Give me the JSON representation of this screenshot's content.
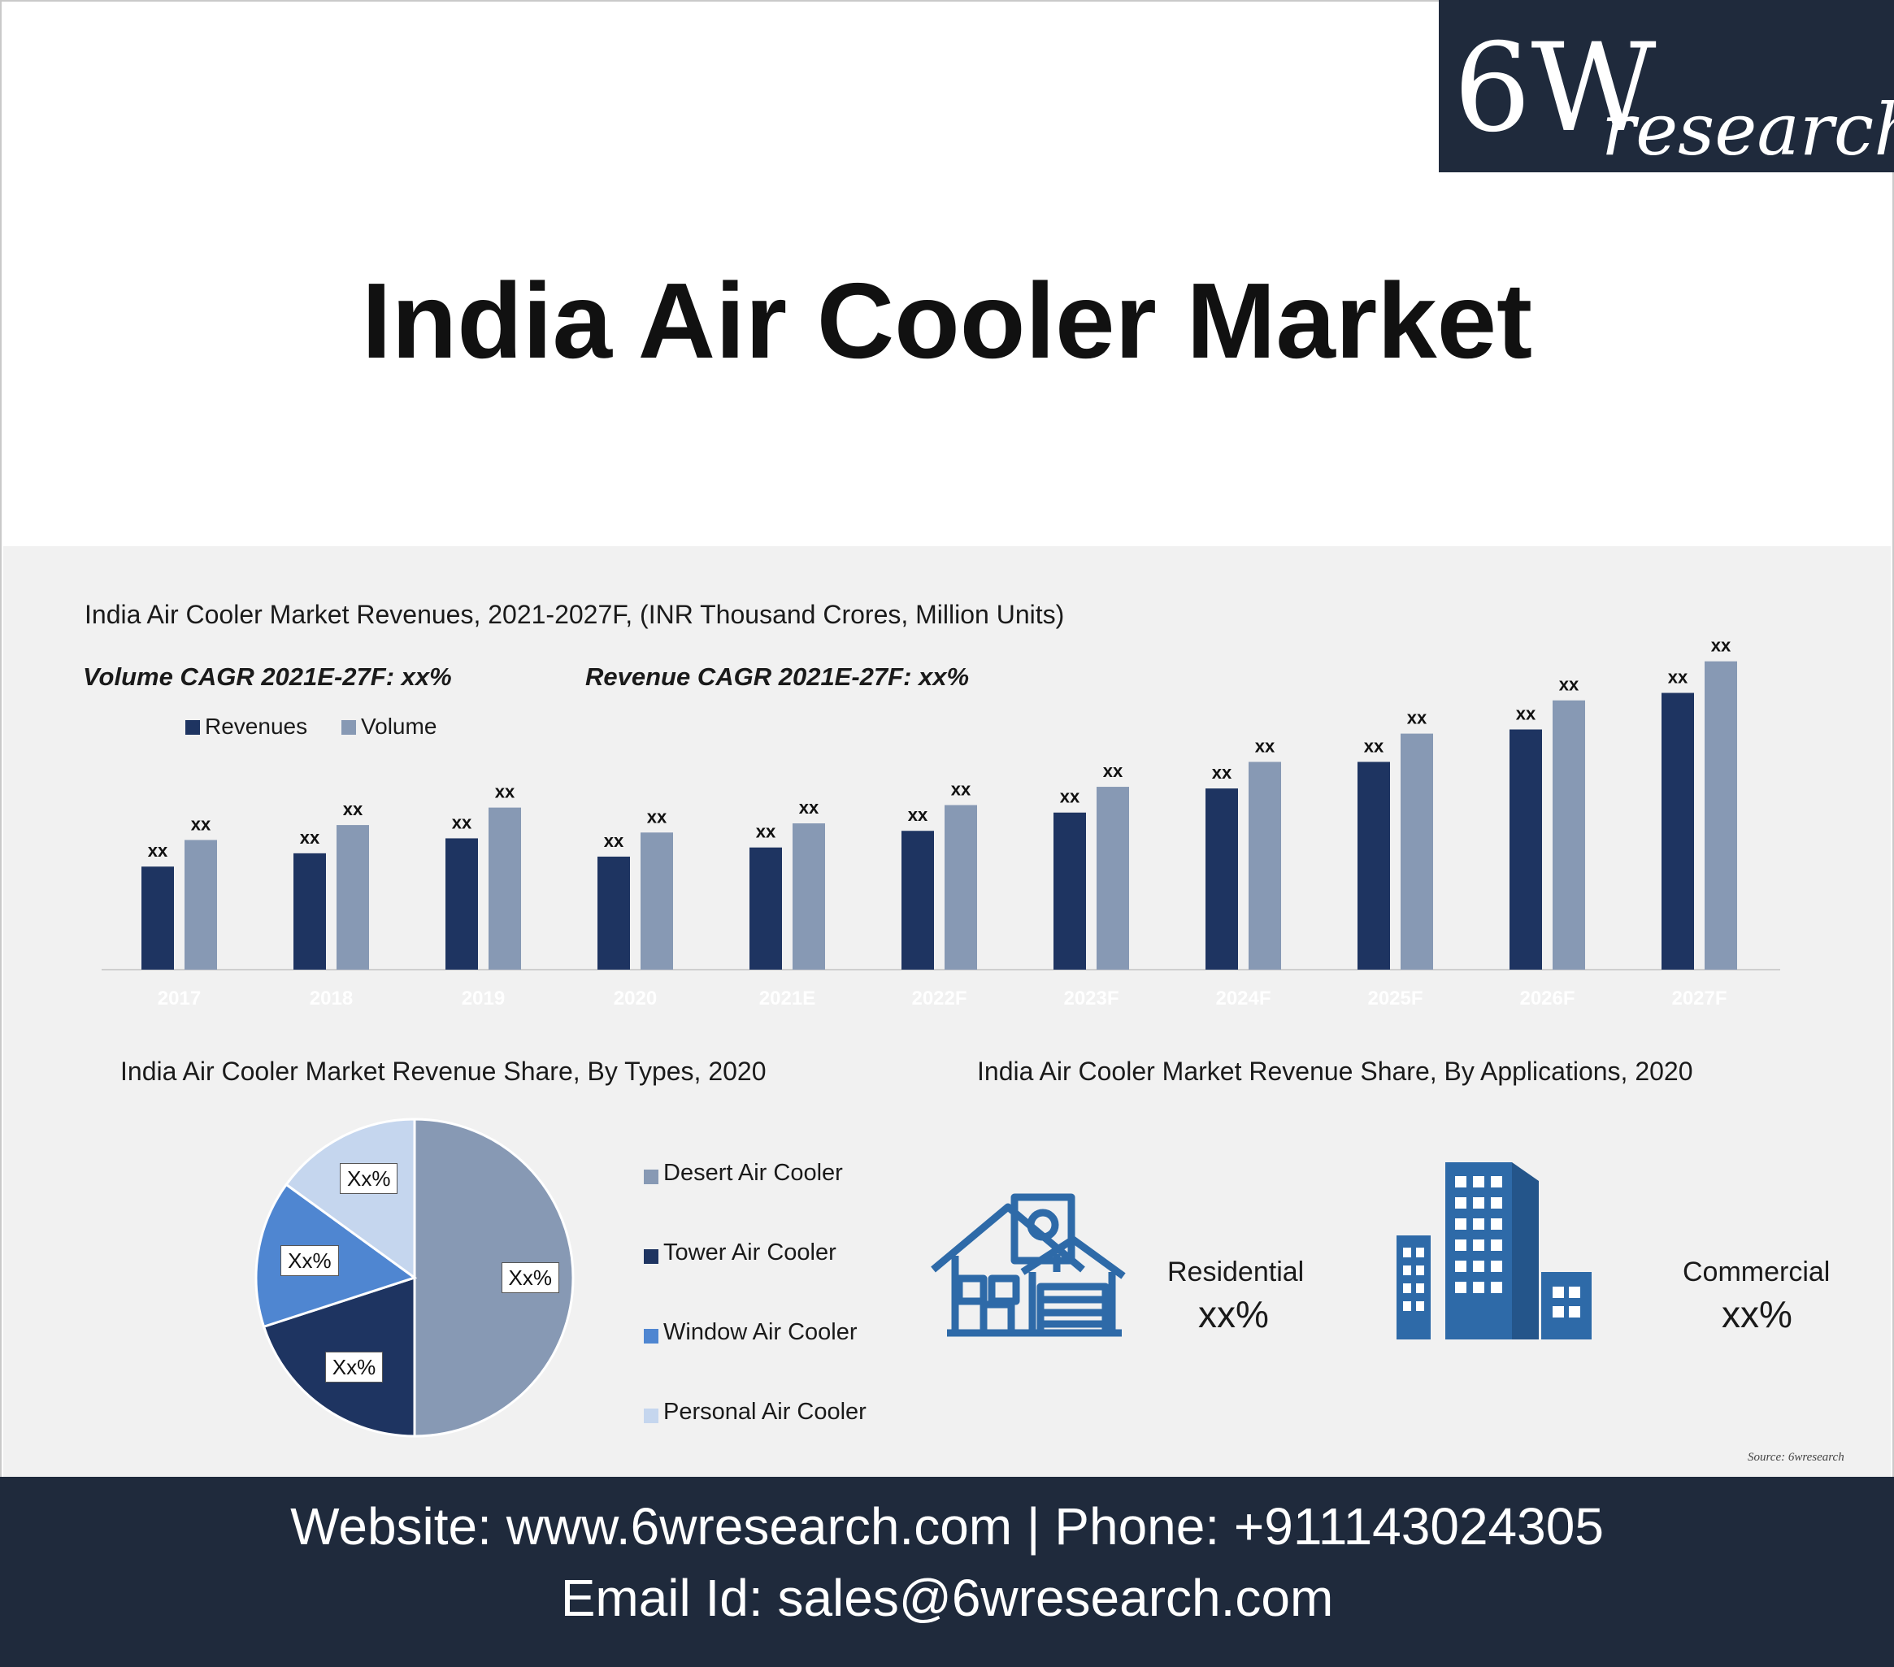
{
  "brand": {
    "logo_number": "6W",
    "logo_word": "research",
    "bg_color": "#1f2a3c"
  },
  "title": "India Air Cooler Market",
  "bar_chart": {
    "title": "India Air Cooler Market Revenues, 2021-2027F, (INR Thousand Crores, Million Units)",
    "volume_cagr": "Volume CAGR 2021E-27F: xx%",
    "revenue_cagr": "Revenue CAGR 2021E-27F: xx%"
  },
  "pie_chart": {
    "title": "India Air Cooler Market Revenue Share, By Types, 2020"
  },
  "applications": {
    "title": "India Air Cooler Market Revenue Share, By Applications, 2020",
    "items": [
      {
        "label": "Residential",
        "value": "xx%",
        "icon": "house-icon"
      },
      {
        "label": "Commercial",
        "value": "xx%",
        "icon": "building-icon"
      }
    ]
  },
  "source": "Source: 6wresearch",
  "footer": {
    "line1": "Website: www.6wresearch.com | Phone: +911143024305",
    "line2": "Email Id: sales@6wresearch.com"
  },
  "colors": {
    "revenues": "#1e3461",
    "volume": "#8799b4",
    "window": "#4f86d1",
    "personal": "#c5d6ee",
    "icon_blue": "#2e6aa8"
  },
  "chart_data": [
    {
      "type": "bar",
      "title": "India Air Cooler Market Revenues, 2021-2027F, (INR Thousand Crores, Million Units)",
      "categories": [
        "2017",
        "2018",
        "2019",
        "2020",
        "2021E",
        "2022F",
        "2023F",
        "2024F",
        "2025F",
        "2026F",
        "2027F"
      ],
      "series": [
        {
          "name": "Revenues",
          "values": [
            12.4,
            14.0,
            15.8,
            13.6,
            14.7,
            16.7,
            18.9,
            21.8,
            25.0,
            28.9,
            33.3
          ],
          "labels": [
            "xx",
            "xx",
            "xx",
            "xx",
            "xx",
            "xx",
            "xx",
            "xx",
            "xx",
            "xx",
            "xx"
          ]
        },
        {
          "name": "Volume",
          "values": [
            15.6,
            17.4,
            19.5,
            16.5,
            17.6,
            19.8,
            22.0,
            25.0,
            28.4,
            32.4,
            37.1
          ],
          "labels": [
            "xx",
            "xx",
            "xx",
            "xx",
            "xx",
            "xx",
            "xx",
            "xx",
            "xx",
            "xx",
            "xx"
          ]
        }
      ],
      "ylim": [
        0,
        40
      ],
      "legend": "top-left",
      "grid": false
    },
    {
      "type": "pie",
      "title": "India Air Cooler Market Revenue Share, By Types, 2020",
      "slices": [
        {
          "name": "Desert Air Cooler",
          "value": 50,
          "label": "Xx%"
        },
        {
          "name": "Tower Air Cooler",
          "value": 20,
          "label": "Xx%"
        },
        {
          "name": "Window Air Cooler",
          "value": 15,
          "label": "Xx%"
        },
        {
          "name": "Personal Air Cooler",
          "value": 15,
          "label": "Xx%"
        }
      ],
      "legend": "right"
    }
  ]
}
